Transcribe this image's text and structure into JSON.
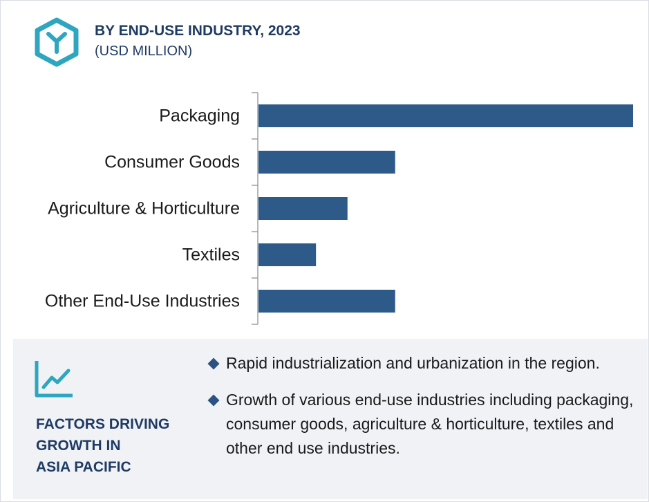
{
  "header": {
    "title": "BY END-USE INDUSTRY, 2023",
    "subtitle": "(USD MILLION)",
    "icon": "hexagon-y-logo-icon"
  },
  "colors": {
    "bar": "#2e5a8a",
    "accent_teal": "#2ea6bf",
    "title_blue": "#1f3b63",
    "panel_bg": "#f0f2f6"
  },
  "chart_data": {
    "type": "bar",
    "orientation": "horizontal",
    "categories": [
      "Packaging",
      "Consumer Goods",
      "Agriculture & Horticulture",
      "Textiles",
      "Other End-Use Industries"
    ],
    "values": [
      100,
      36.6,
      23.9,
      15.5,
      36.6
    ],
    "xlim": [
      0,
      100
    ],
    "grid": false,
    "legend": "none"
  },
  "factors": {
    "icon": "line-chart-trend-icon",
    "title_lines": [
      "FACTORS DRIVING",
      "GROWTH IN",
      "ASIA PACIFIC"
    ],
    "bullets": [
      "Rapid industrialization and urbanization in the region.",
      "Growth of various end-use industries including packaging, consumer goods, agriculture & horticulture, textiles and other end use industries."
    ]
  }
}
